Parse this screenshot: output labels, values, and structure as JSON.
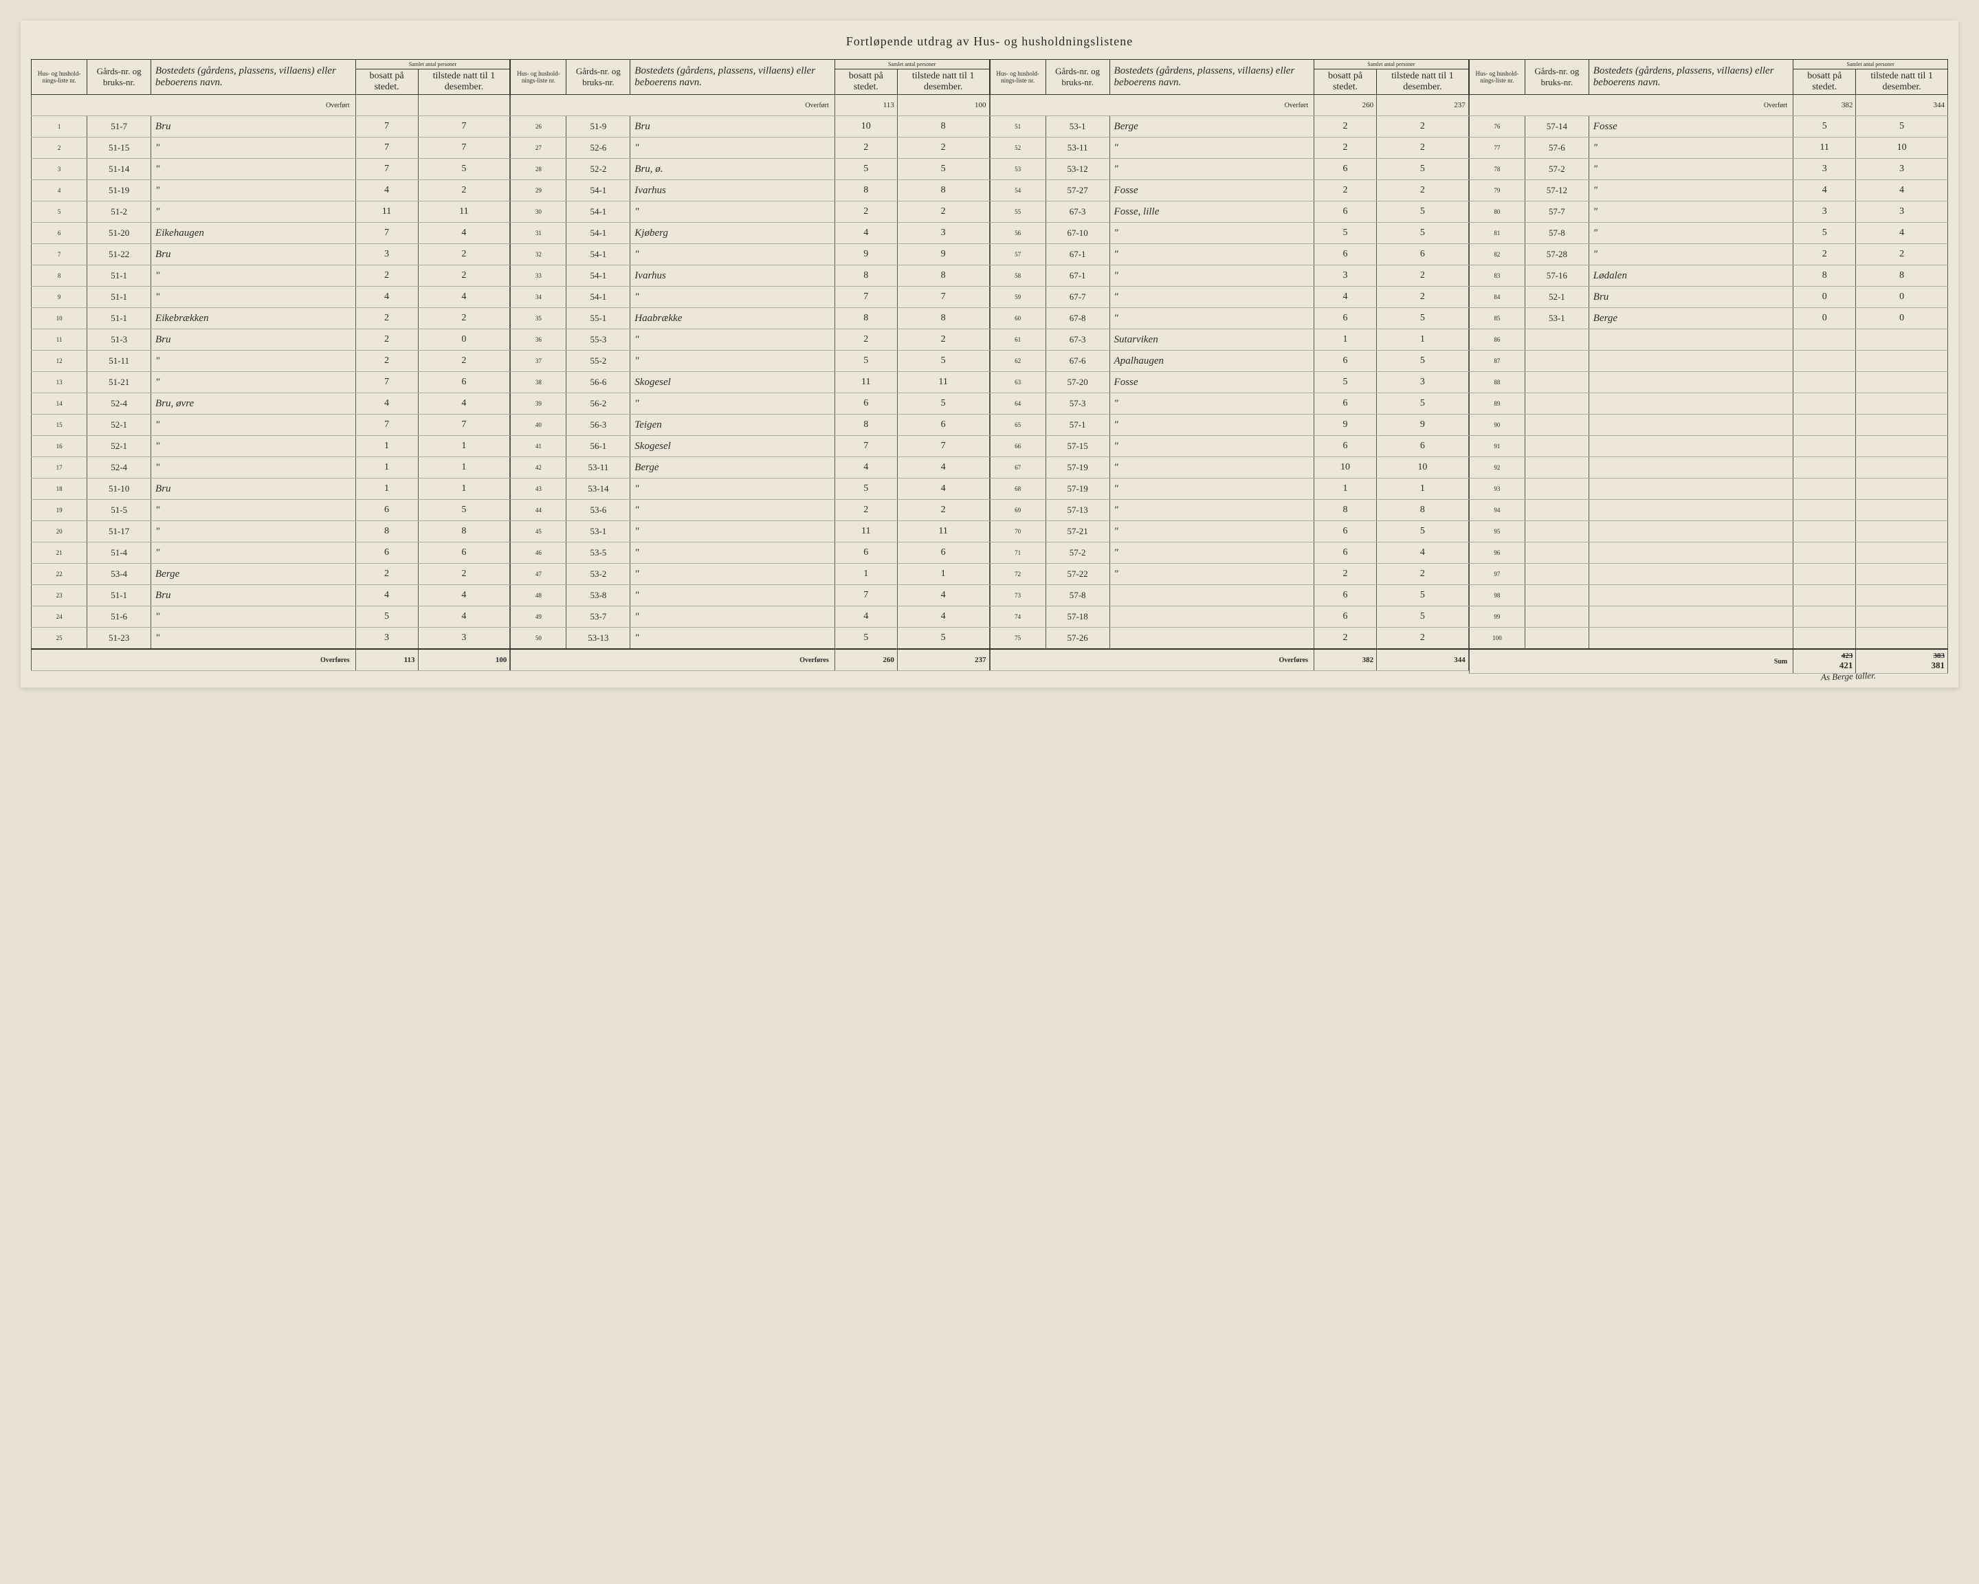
{
  "title": "Fortløpende utdrag        av Hus- og husholdningslistene",
  "headers": {
    "h1": "Hus- og hushold-nings-liste nr.",
    "h2": "Gårds-nr. og bruks-nr.",
    "h3": "Bostedets (gårdens, plassens, villaens) eller beboerens navn.",
    "h4_group": "Samlet antal personer",
    "h4a": "bosatt på stedet.",
    "h4b": "tilstede natt til 1 desember."
  },
  "overfort_label": "Overført",
  "overfores_label": "Overføres",
  "sum_label": "Sum",
  "block1": {
    "overfort": [
      "",
      ""
    ],
    "rows": [
      {
        "nr": "1",
        "gard": "51-7",
        "navn": "Bru",
        "b": "7",
        "t": "7"
      },
      {
        "nr": "2",
        "gard": "51-15",
        "navn": "\"",
        "b": "7",
        "t": "7"
      },
      {
        "nr": "3",
        "gard": "51-14",
        "navn": "\"",
        "b": "7",
        "t": "5"
      },
      {
        "nr": "4",
        "gard": "51-19",
        "navn": "\"",
        "b": "4",
        "t": "2"
      },
      {
        "nr": "5",
        "gard": "51-2",
        "navn": "\"",
        "b": "11",
        "t": "11"
      },
      {
        "nr": "6",
        "gard": "51-20",
        "navn": "Eikehaugen",
        "b": "7",
        "t": "4"
      },
      {
        "nr": "7",
        "gard": "51-22",
        "navn": "Bru",
        "b": "3",
        "t": "2"
      },
      {
        "nr": "8",
        "gard": "51-1",
        "navn": "\"",
        "b": "2",
        "t": "2"
      },
      {
        "nr": "9",
        "gard": "51-1",
        "navn": "\"",
        "b": "4",
        "t": "4"
      },
      {
        "nr": "10",
        "gard": "51-1",
        "navn": "Eikebrækken",
        "b": "2",
        "t": "2"
      },
      {
        "nr": "11",
        "gard": "51-3",
        "navn": "Bru",
        "b": "2",
        "t": "0"
      },
      {
        "nr": "12",
        "gard": "51-11",
        "navn": "\"",
        "b": "2",
        "t": "2"
      },
      {
        "nr": "13",
        "gard": "51-21",
        "navn": "\"",
        "b": "7",
        "t": "6"
      },
      {
        "nr": "14",
        "gard": "52-4",
        "navn": "Bru, øvre",
        "b": "4",
        "t": "4"
      },
      {
        "nr": "15",
        "gard": "52-1",
        "navn": "\"",
        "b": "7",
        "t": "7"
      },
      {
        "nr": "16",
        "gard": "52-1",
        "navn": "\"",
        "b": "1",
        "t": "1"
      },
      {
        "nr": "17",
        "gard": "52-4",
        "navn": "\"",
        "b": "1",
        "t": "1"
      },
      {
        "nr": "18",
        "gard": "51-10",
        "navn": "Bru",
        "b": "1",
        "t": "1"
      },
      {
        "nr": "19",
        "gard": "51-5",
        "navn": "\"",
        "b": "6",
        "t": "5"
      },
      {
        "nr": "20",
        "gard": "51-17",
        "navn": "\"",
        "b": "8",
        "t": "8"
      },
      {
        "nr": "21",
        "gard": "51-4",
        "navn": "\"",
        "b": "6",
        "t": "6"
      },
      {
        "nr": "22",
        "gard": "53-4",
        "navn": "Berge",
        "b": "2",
        "t": "2"
      },
      {
        "nr": "23",
        "gard": "51-1",
        "navn": "Bru",
        "b": "4",
        "t": "4"
      },
      {
        "nr": "24",
        "gard": "51-6",
        "navn": "\"",
        "b": "5",
        "t": "4"
      },
      {
        "nr": "25",
        "gard": "51-23",
        "navn": "\"",
        "b": "3",
        "t": "3"
      }
    ],
    "overfores": [
      "113",
      "100"
    ]
  },
  "block2": {
    "overfort": [
      "113",
      "100"
    ],
    "rows": [
      {
        "nr": "26",
        "gard": "51-9",
        "navn": "Bru",
        "b": "10",
        "t": "8"
      },
      {
        "nr": "27",
        "gard": "52-6",
        "navn": "\"",
        "b": "2",
        "t": "2"
      },
      {
        "nr": "28",
        "gard": "52-2",
        "navn": "Bru, ø.",
        "b": "5",
        "t": "5"
      },
      {
        "nr": "29",
        "gard": "54-1",
        "navn": "Ivarhus",
        "b": "8",
        "t": "8"
      },
      {
        "nr": "30",
        "gard": "54-1",
        "navn": "\"",
        "b": "2",
        "t": "2"
      },
      {
        "nr": "31",
        "gard": "54-1",
        "navn": "Kjøberg",
        "b": "4",
        "t": "3"
      },
      {
        "nr": "32",
        "gard": "54-1",
        "navn": "\"",
        "b": "9",
        "t": "9"
      },
      {
        "nr": "33",
        "gard": "54-1",
        "navn": "Ivarhus",
        "b": "8",
        "t": "8"
      },
      {
        "nr": "34",
        "gard": "54-1",
        "navn": "\"",
        "b": "7",
        "t": "7"
      },
      {
        "nr": "35",
        "gard": "55-1",
        "navn": "Haabrække",
        "b": "8",
        "t": "8"
      },
      {
        "nr": "36",
        "gard": "55-3",
        "navn": "\"",
        "b": "2",
        "t": "2"
      },
      {
        "nr": "37",
        "gard": "55-2",
        "navn": "\"",
        "b": "5",
        "t": "5"
      },
      {
        "nr": "38",
        "gard": "56-6",
        "navn": "Skogesel",
        "b": "11",
        "t": "11"
      },
      {
        "nr": "39",
        "gard": "56-2",
        "navn": "\"",
        "b": "6",
        "t": "5"
      },
      {
        "nr": "40",
        "gard": "56-3",
        "navn": "Teigen",
        "b": "8",
        "t": "6"
      },
      {
        "nr": "41",
        "gard": "56-1",
        "navn": "Skogesel",
        "b": "7",
        "t": "7"
      },
      {
        "nr": "42",
        "gard": "53-11",
        "navn": "Berge",
        "b": "4",
        "t": "4"
      },
      {
        "nr": "43",
        "gard": "53-14",
        "navn": "\"",
        "b": "5",
        "t": "4"
      },
      {
        "nr": "44",
        "gard": "53-6",
        "navn": "\"",
        "b": "2",
        "t": "2"
      },
      {
        "nr": "45",
        "gard": "53-1",
        "navn": "\"",
        "b": "11",
        "t": "11"
      },
      {
        "nr": "46",
        "gard": "53-5",
        "navn": "\"",
        "b": "6",
        "t": "6"
      },
      {
        "nr": "47",
        "gard": "53-2",
        "navn": "\"",
        "b": "1",
        "t": "1"
      },
      {
        "nr": "48",
        "gard": "53-8",
        "navn": "\"",
        "b": "7",
        "t": "4"
      },
      {
        "nr": "49",
        "gard": "53-7",
        "navn": "\"",
        "b": "4",
        "t": "4"
      },
      {
        "nr": "50",
        "gard": "53-13",
        "navn": "\"",
        "b": "5",
        "t": "5"
      }
    ],
    "overfores": [
      "260",
      "237"
    ]
  },
  "block3": {
    "overfort": [
      "260",
      "237"
    ],
    "rows": [
      {
        "nr": "51",
        "gard": "53-1",
        "navn": "Berge",
        "b": "2",
        "t": "2"
      },
      {
        "nr": "52",
        "gard": "53-11",
        "navn": "\"",
        "b": "2",
        "t": "2"
      },
      {
        "nr": "53",
        "gard": "53-12",
        "navn": "\"",
        "b": "6",
        "t": "5"
      },
      {
        "nr": "54",
        "gard": "57-27",
        "navn": "Fosse",
        "b": "2",
        "t": "2"
      },
      {
        "nr": "55",
        "gard": "67-3",
        "navn": "Fosse, lille",
        "b": "6",
        "t": "5"
      },
      {
        "nr": "56",
        "gard": "67-10",
        "navn": "\"",
        "b": "5",
        "t": "5"
      },
      {
        "nr": "57",
        "gard": "67-1",
        "navn": "\"",
        "b": "6",
        "t": "6"
      },
      {
        "nr": "58",
        "gard": "67-1",
        "navn": "\"",
        "b": "3",
        "t": "2"
      },
      {
        "nr": "59",
        "gard": "67-7",
        "navn": "\"",
        "b": "4",
        "t": "2"
      },
      {
        "nr": "60",
        "gard": "67-8",
        "navn": "\"",
        "b": "6",
        "t": "5"
      },
      {
        "nr": "61",
        "gard": "67-3",
        "navn": "Sutarviken",
        "b": "1",
        "t": "1"
      },
      {
        "nr": "62",
        "gard": "67-6",
        "navn": "Apalhaugen",
        "b": "6",
        "t": "5"
      },
      {
        "nr": "63",
        "gard": "57-20",
        "navn": "Fosse",
        "b": "5",
        "t": "3"
      },
      {
        "nr": "64",
        "gard": "57-3",
        "navn": "\"",
        "b": "6",
        "t": "5"
      },
      {
        "nr": "65",
        "gard": "57-1",
        "navn": "\"",
        "b": "9",
        "t": "9"
      },
      {
        "nr": "66",
        "gard": "57-15",
        "navn": "\"",
        "b": "6",
        "t": "6"
      },
      {
        "nr": "67",
        "gard": "57-19",
        "navn": "\"",
        "b": "10",
        "t": "10"
      },
      {
        "nr": "68",
        "gard": "57-19",
        "navn": "\"",
        "b": "1",
        "t": "1"
      },
      {
        "nr": "69",
        "gard": "57-13",
        "navn": "\"",
        "b": "8",
        "t": "8"
      },
      {
        "nr": "70",
        "gard": "57-21",
        "navn": "\"",
        "b": "6",
        "t": "5"
      },
      {
        "nr": "71",
        "gard": "57-2",
        "navn": "\"",
        "b": "6",
        "t": "4"
      },
      {
        "nr": "72",
        "gard": "57-22",
        "navn": "\"",
        "b": "2",
        "t": "2"
      },
      {
        "nr": "73",
        "gard": "57-8",
        "navn": "",
        "b": "6",
        "t": "5"
      },
      {
        "nr": "74",
        "gard": "57-18",
        "navn": "",
        "b": "6",
        "t": "5"
      },
      {
        "nr": "75",
        "gard": "57-26",
        "navn": "",
        "b": "2",
        "t": "2"
      }
    ],
    "overfores": [
      "382",
      "344"
    ]
  },
  "block4": {
    "overfort": [
      "382",
      "344"
    ],
    "rows": [
      {
        "nr": "76",
        "gard": "57-14",
        "navn": "Fosse",
        "b": "5",
        "t": "5"
      },
      {
        "nr": "77",
        "gard": "57-6",
        "navn": "\"",
        "b": "11",
        "t": "10"
      },
      {
        "nr": "78",
        "gard": "57-2",
        "navn": "\"",
        "b": "3",
        "t": "3"
      },
      {
        "nr": "79",
        "gard": "57-12",
        "navn": "\"",
        "b": "4",
        "t": "4"
      },
      {
        "nr": "80",
        "gard": "57-7",
        "navn": "\"",
        "b": "3",
        "t": "3"
      },
      {
        "nr": "81",
        "gard": "57-8",
        "navn": "\"",
        "b": "5",
        "t": "4"
      },
      {
        "nr": "82",
        "gard": "57-28",
        "navn": "\"",
        "b": "2",
        "t": "2"
      },
      {
        "nr": "83",
        "gard": "57-16",
        "navn": "Lødalen",
        "b": "8",
        "t": "8"
      },
      {
        "nr": "84",
        "gard": "52-1",
        "navn": "Bru",
        "b": "0",
        "t": "0"
      },
      {
        "nr": "85",
        "gard": "53-1",
        "navn": "Berge",
        "b": "0",
        "t": "0"
      },
      {
        "nr": "86",
        "gard": "",
        "navn": "",
        "b": "",
        "t": ""
      },
      {
        "nr": "87",
        "gard": "",
        "navn": "",
        "b": "",
        "t": ""
      },
      {
        "nr": "88",
        "gard": "",
        "navn": "",
        "b": "",
        "t": ""
      },
      {
        "nr": "89",
        "gard": "",
        "navn": "",
        "b": "",
        "t": ""
      },
      {
        "nr": "90",
        "gard": "",
        "navn": "",
        "b": "",
        "t": ""
      },
      {
        "nr": "91",
        "gard": "",
        "navn": "",
        "b": "",
        "t": ""
      },
      {
        "nr": "92",
        "gard": "",
        "navn": "",
        "b": "",
        "t": ""
      },
      {
        "nr": "93",
        "gard": "",
        "navn": "",
        "b": "",
        "t": ""
      },
      {
        "nr": "94",
        "gard": "",
        "navn": "",
        "b": "",
        "t": ""
      },
      {
        "nr": "95",
        "gard": "",
        "navn": "",
        "b": "",
        "t": ""
      },
      {
        "nr": "96",
        "gard": "",
        "navn": "",
        "b": "",
        "t": ""
      },
      {
        "nr": "97",
        "gard": "",
        "navn": "",
        "b": "",
        "t": ""
      },
      {
        "nr": "98",
        "gard": "",
        "navn": "",
        "b": "",
        "t": ""
      },
      {
        "nr": "99",
        "gard": "",
        "navn": "",
        "b": "",
        "t": ""
      },
      {
        "nr": "100",
        "gard": "",
        "navn": "",
        "b": "",
        "t": ""
      }
    ],
    "sum": [
      "423",
      "383"
    ],
    "sum_corrected": [
      "421",
      "381"
    ]
  },
  "handwritten_note": "As Berge taller."
}
